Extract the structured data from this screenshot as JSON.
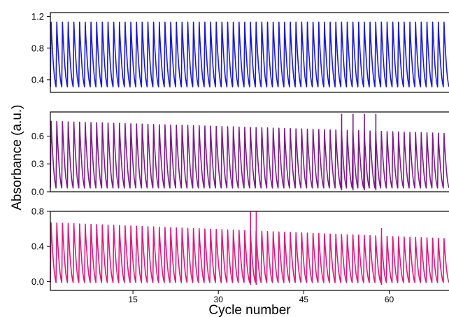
{
  "chart_data": {
    "type": "line",
    "xlabel": "Cycle number",
    "ylabel": "Absorbance (a.u.)",
    "x_ticks": [
      15,
      30,
      45,
      60
    ],
    "xlim": [
      0.5,
      70.5
    ],
    "panels": [
      {
        "color": "#1a1ad6",
        "ylim": [
          0.24,
          1.25
        ],
        "y_ticks": [
          "0.4",
          "0.8",
          "1.2"
        ],
        "y_tick_values": [
          0.4,
          0.8,
          1.2
        ],
        "cycles": 70,
        "peak_start": 1.13,
        "peak_end": 1.13,
        "trough_start": 0.31,
        "trough_end": 0.31,
        "spikes": []
      },
      {
        "color": "#7d1b8a",
        "ylim": [
          0.0,
          0.86
        ],
        "y_ticks": [
          "0.0",
          "0.3",
          "0.6"
        ],
        "y_tick_values": [
          0.0,
          0.3,
          0.6
        ],
        "cycles": 70,
        "peak_start": 0.76,
        "peak_end": 0.63,
        "trough_start": 0.04,
        "trough_end": 0.04,
        "spikes": [
          {
            "cycle": 52,
            "value": 0.84
          },
          {
            "cycle": 54,
            "value": 0.84
          },
          {
            "cycle": 56,
            "value": 0.84
          },
          {
            "cycle": 58,
            "value": 0.84
          }
        ]
      },
      {
        "color": "#e0197e",
        "ylim": [
          -0.1,
          0.8
        ],
        "y_ticks": [
          "0.0",
          "0.4",
          "0.8"
        ],
        "y_tick_values": [
          0.0,
          0.4,
          0.8
        ],
        "cycles": 70,
        "peak_start": 0.67,
        "peak_end": 0.49,
        "trough_start": -0.01,
        "trough_end": -0.01,
        "spikes": [
          {
            "cycle": 36,
            "value": 0.8
          },
          {
            "cycle": 37,
            "value": 0.8
          },
          {
            "cycle": 59,
            "value": 0.61
          }
        ]
      }
    ]
  }
}
